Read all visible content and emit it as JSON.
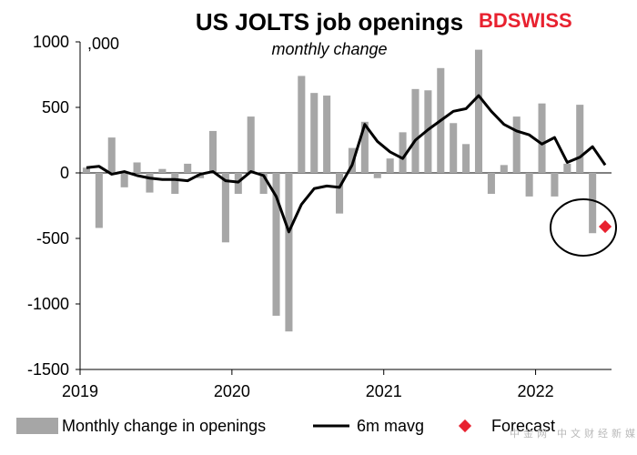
{
  "chart_data": {
    "type": "bar",
    "title": "US JOLTS job openings",
    "subtitle": "monthly change",
    "units_label": ",000",
    "brand": "BDSWISS",
    "watermark": "中金网 中文财经新媒体",
    "xlabel": "",
    "ylabel": "",
    "ylim": [
      -1500,
      1000
    ],
    "yticks": [
      1000,
      500,
      0,
      -500,
      -1000,
      -1500
    ],
    "ytick_labels": [
      "1000",
      "500",
      "0",
      "-500",
      "-1000",
      "-1500"
    ],
    "x_year_labels": [
      "2019",
      "2020",
      "2021",
      "2022"
    ],
    "months_per_year": 12,
    "legend_position": "bottom",
    "series": [
      {
        "name": "Monthly change in openings",
        "kind": "bar",
        "color": "#a6a6a6",
        "values": [
          40,
          -420,
          270,
          -110,
          80,
          -150,
          30,
          -160,
          70,
          -40,
          320,
          -530,
          -160,
          430,
          -160,
          -1090,
          -1210,
          740,
          610,
          590,
          -310,
          190,
          390,
          -40,
          110,
          310,
          640,
          630,
          800,
          380,
          220,
          940,
          -160,
          60,
          430,
          -180,
          530,
          -180,
          70,
          520,
          -460
        ]
      },
      {
        "name": "6m mavg",
        "kind": "line",
        "color": "#000000",
        "values": [
          40,
          50,
          -10,
          10,
          -20,
          -40,
          -50,
          -50,
          -60,
          -10,
          10,
          -60,
          -70,
          10,
          -20,
          -180,
          -450,
          -240,
          -120,
          -100,
          -110,
          60,
          370,
          240,
          160,
          110,
          250,
          330,
          400,
          470,
          490,
          590,
          470,
          370,
          320,
          290,
          220,
          270,
          80,
          120,
          200,
          60
        ]
      },
      {
        "name": "Forecast",
        "kind": "marker",
        "color": "#e8212f",
        "x_index": 41,
        "values": [
          -410
        ]
      }
    ],
    "legend": [
      "Monthly change in openings",
      "6m mavg",
      "Forecast"
    ]
  }
}
